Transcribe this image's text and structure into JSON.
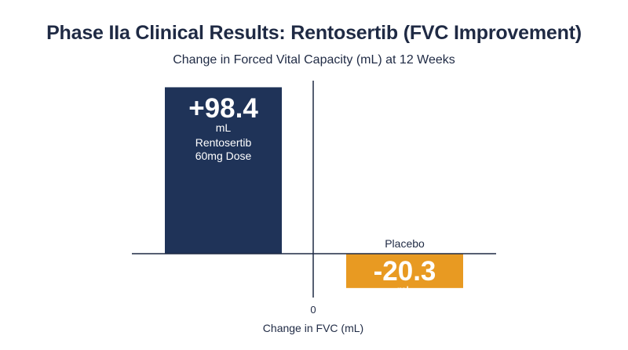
{
  "chart_data": {
    "type": "bar",
    "title": "Phase IIa Clinical Results: Rentosertib (FVC Improvement)",
    "subtitle": "Change in Forced Vital Capacity (mL) at 12 Weeks",
    "xlabel": "Change in FVC (mL)",
    "ylabel": "",
    "zero_tick": "0",
    "ylim": [
      -24,
      100
    ],
    "categories": [
      "Rentosertib 60mg Dose",
      "Placebo"
    ],
    "values": [
      98.4,
      -20.3
    ],
    "grid": false,
    "legend": "none",
    "bars": [
      {
        "value": 98.4,
        "value_label": "+98.4",
        "unit": "mL",
        "label_lines": [
          "Rentosertib",
          "60mg Dose"
        ],
        "color": "#1f3358"
      },
      {
        "value": -20.3,
        "value_label": "-20.3",
        "unit": "mL",
        "label_lines": [
          "Placebo"
        ],
        "color": "#e89a22"
      }
    ]
  },
  "colors": {
    "axis": "#1f2a44",
    "text_dark": "#1f2a44",
    "text_light": "#ffffff"
  }
}
